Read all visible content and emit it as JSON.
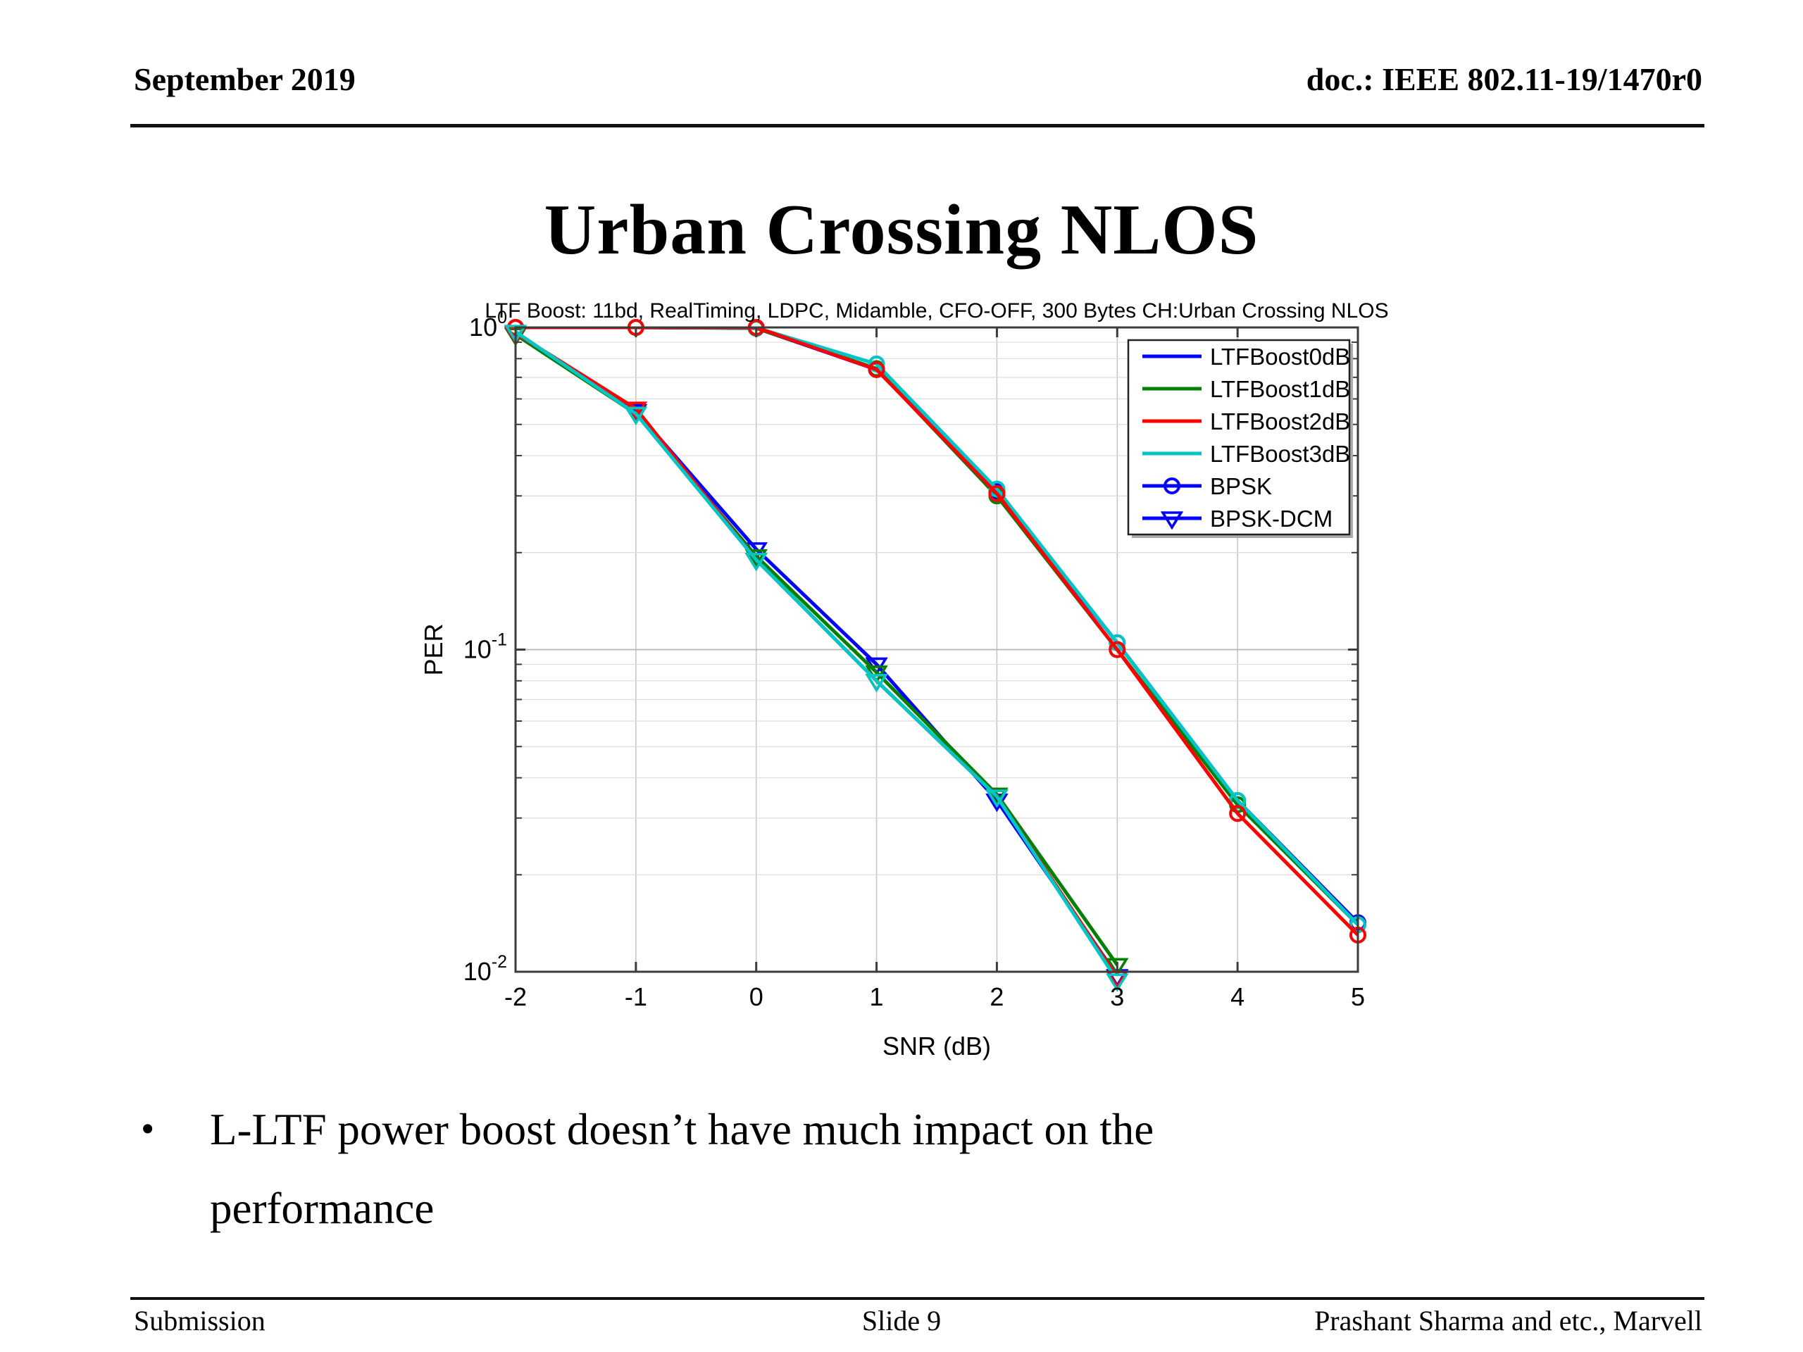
{
  "header": {
    "left": "September 2019",
    "right": "doc.: IEEE 802.11-19/1470r0"
  },
  "title": "Urban Crossing NLOS",
  "chart_data": {
    "type": "line",
    "title": "LTF Boost: 11bd, RealTiming, LDPC, Midamble, CFO-OFF, 300 Bytes CH:Urban Crossing NLOS",
    "xlabel": "SNR (dB)",
    "ylabel": "PER",
    "y_scale": "log",
    "grid": "on",
    "xlim": [
      -2,
      5
    ],
    "ylim_log10": [
      -2,
      0
    ],
    "x_ticks": [
      -2,
      -1,
      0,
      1,
      2,
      3,
      4,
      5
    ],
    "y_tick_exponents": [
      0,
      -1,
      -2
    ],
    "legend_position": "top-right",
    "legend": [
      {
        "label": "LTFBoost0dB",
        "color": "#0000ff",
        "marker": "none"
      },
      {
        "label": "LTFBoost1dB",
        "color": "#008000",
        "marker": "none"
      },
      {
        "label": "LTFBoost2dB",
        "color": "#ff0000",
        "marker": "none"
      },
      {
        "label": "LTFBoost3dB",
        "color": "#00c5c5",
        "marker": "none"
      },
      {
        "label": "BPSK",
        "color": "#0000ff",
        "marker": "circle"
      },
      {
        "label": "BPSK-DCM",
        "color": "#0000ff",
        "marker": "triangle-down"
      }
    ],
    "series": [
      {
        "name": "BPSK-LTFBoost0dB",
        "color": "#0000ff",
        "marker": "circle",
        "x": [
          -2,
          -1,
          0,
          1,
          2,
          3,
          4,
          5
        ],
        "y": [
          1.0,
          1.0,
          0.995,
          0.74,
          0.31,
          0.105,
          0.034,
          0.0142
        ]
      },
      {
        "name": "BPSK-LTFBoost1dB",
        "color": "#008000",
        "marker": "circle",
        "x": [
          -2,
          -1,
          0,
          1,
          2,
          3,
          4,
          5
        ],
        "y": [
          1.0,
          1.0,
          0.995,
          0.745,
          0.3,
          0.1,
          0.033,
          0.014
        ]
      },
      {
        "name": "BPSK-LTFBoost3dB",
        "color": "#00c5c5",
        "marker": "circle",
        "x": [
          -2,
          -1,
          0,
          1,
          2,
          3,
          4,
          5
        ],
        "y": [
          1.0,
          1.0,
          0.998,
          0.77,
          0.315,
          0.105,
          0.034,
          0.014
        ]
      },
      {
        "name": "BPSK-LTFBoost2dB",
        "color": "#ff0000",
        "marker": "circle",
        "x": [
          -2,
          -1,
          0,
          1,
          2,
          3,
          4,
          5
        ],
        "y": [
          1.0,
          1.0,
          1.0,
          0.74,
          0.305,
          0.1,
          0.031,
          0.013
        ]
      },
      {
        "name": "BPSK-DCM-LTFBoost0dB",
        "color": "#0000ff",
        "marker": "triangle-down",
        "x": [
          -2,
          -1,
          0,
          1,
          2,
          3
        ],
        "y": [
          0.95,
          0.55,
          0.205,
          0.09,
          0.034,
          0.0097
        ]
      },
      {
        "name": "BPSK-DCM-LTFBoost1dB",
        "color": "#008000",
        "marker": "triangle-down",
        "x": [
          -2,
          -1,
          0,
          1,
          2,
          3
        ],
        "y": [
          0.95,
          0.54,
          0.195,
          0.085,
          0.0355,
          0.0105
        ]
      },
      {
        "name": "BPSK-DCM-LTFBoost2dB",
        "color": "#ff0000",
        "marker": "triangle-down",
        "x": [
          -2,
          -1,
          0,
          1,
          2,
          3
        ],
        "y": [
          0.96,
          0.56,
          0.19,
          0.08,
          0.035,
          0.0096
        ]
      },
      {
        "name": "BPSK-DCM-LTFBoost3dB",
        "color": "#00c5c5",
        "marker": "triangle-down",
        "x": [
          -2,
          -1,
          0,
          1,
          2,
          3
        ],
        "y": [
          0.97,
          0.54,
          0.19,
          0.08,
          0.035,
          0.0094
        ]
      }
    ]
  },
  "bullet": {
    "marker": "•",
    "text": "L-LTF power boost doesn’t have much impact on the performance"
  },
  "footer": {
    "left": "Submission",
    "center": "Slide 9",
    "right": "Prashant Sharma and etc., Marvell"
  },
  "colors": {
    "blue": "#0000ff",
    "green": "#008000",
    "red": "#ff0000",
    "cyan": "#00c5c5",
    "frame": "#3c3c3c",
    "grid_major": "#b4b4b4",
    "grid_minor": "#dcdcdc",
    "grid_vertical": "#c6c6c6"
  }
}
